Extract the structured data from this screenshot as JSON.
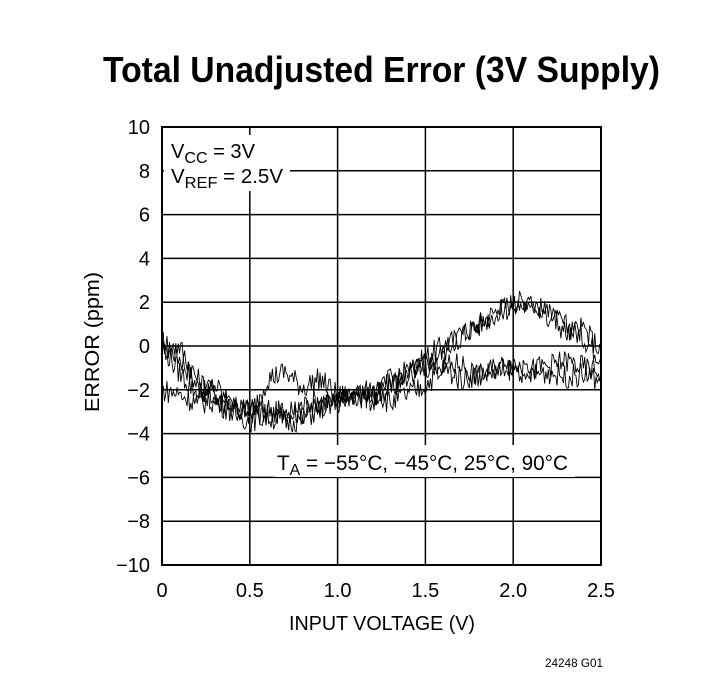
{
  "chart_data": {
    "type": "line",
    "title": "Total Unadjusted Error (3V Supply)",
    "xlabel": "INPUT VOLTAGE (V)",
    "ylabel": "ERROR (ppm)",
    "xlim": [
      0,
      2.5
    ],
    "ylim": [
      -10,
      10
    ],
    "xticks": [
      "0",
      "0.5",
      "1.0",
      "1.5",
      "2.0",
      "2.5"
    ],
    "yticks": [
      "10",
      "8",
      "6",
      "4",
      "2",
      "0",
      "−2",
      "−4",
      "−6",
      "−8",
      "−10"
    ],
    "grid": true,
    "annotations": {
      "vcc_main": "V",
      "vcc_sub": "CC",
      "vcc_rest": " = 3V",
      "vref_main": "V",
      "vref_sub": "REF",
      "vref_rest": " = 2.5V",
      "ta_main": "T",
      "ta_sub": "A",
      "ta_rest": " = −55°C, −45°C, 25°C, 90°C"
    },
    "x": [
      0,
      0.1,
      0.2,
      0.3,
      0.4,
      0.5,
      0.6,
      0.7,
      0.8,
      0.9,
      1.0,
      1.1,
      1.2,
      1.3,
      1.4,
      1.5,
      1.6,
      1.7,
      1.8,
      1.9,
      2.0,
      2.1,
      2.2,
      2.3,
      2.4,
      2.5
    ],
    "series": [
      {
        "values": [
          0.2,
          -0.5,
          -1.8,
          -2.5,
          -2.8,
          -3.0,
          -3.2,
          -2.9,
          -3.1,
          -2.7,
          -2.5,
          -2.4,
          -2.2,
          -2.0,
          -1.4,
          -0.5,
          0.0,
          0.4,
          1.0,
          1.6,
          2.0,
          2.1,
          1.4,
          0.9,
          0.4,
          -0.5
        ]
      },
      {
        "values": [
          -0.2,
          0.0,
          -1.5,
          -2.2,
          -2.6,
          -2.9,
          -2.8,
          -3.2,
          -2.7,
          -2.4,
          -2.6,
          -2.1,
          -2.3,
          -1.7,
          -1.2,
          -0.8,
          -0.3,
          0.6,
          0.9,
          1.5,
          1.8,
          1.9,
          1.6,
          0.6,
          0.8,
          -0.2
        ]
      },
      {
        "values": [
          0.0,
          -1.2,
          -2.2,
          -1.8,
          -2.8,
          -3.2,
          -1.5,
          -1.2,
          -1.9,
          -1.5,
          -2.3,
          -2.2,
          -2.5,
          -1.5,
          -1.2,
          -0.9,
          -1.0,
          -0.8,
          -1.4,
          -1.0,
          -0.8,
          -1.1,
          -0.9,
          -0.7,
          -1.0,
          -1.2
        ]
      },
      {
        "values": [
          -2.0,
          -2.2,
          -2.6,
          -2.5,
          -3.0,
          -3.4,
          -3.2,
          -3.5,
          -3.3,
          -2.9,
          -2.6,
          -2.2,
          -2.0,
          -2.6,
          -2.2,
          -1.8,
          -1.0,
          -1.5,
          -1.3,
          -1.2,
          -1.0,
          -1.3,
          -1.2,
          -1.4,
          -1.3,
          -1.6
        ]
      }
    ]
  },
  "figure_id": "24248 G01"
}
